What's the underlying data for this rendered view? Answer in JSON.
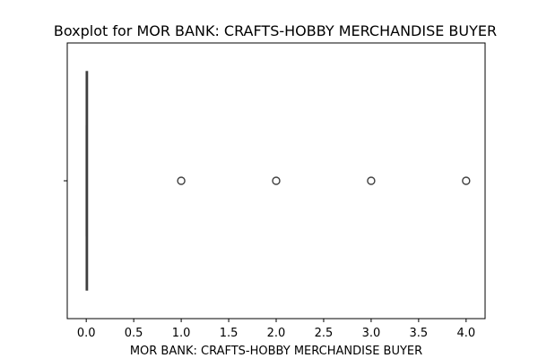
{
  "chart_data": {
    "type": "boxplot",
    "title": "Boxplot for MOR BANK: CRAFTS-HOBBY MERCHANDISE BUYER",
    "xlabel": "MOR BANK: CRAFTS-HOBBY MERCHANDISE BUYER",
    "ylabel": "",
    "xlim": [
      -0.2,
      4.2
    ],
    "xticks": [
      0.0,
      0.5,
      1.0,
      1.5,
      2.0,
      2.5,
      3.0,
      3.5,
      4.0
    ],
    "xtick_labels": [
      "0.0",
      "0.5",
      "1.0",
      "1.5",
      "2.0",
      "2.5",
      "3.0",
      "3.5",
      "4.0"
    ],
    "orientation": "horizontal",
    "grid": false,
    "box": {
      "whisker_low": 0,
      "q1": 0,
      "median": 0,
      "q3": 0,
      "whisker_high": 0
    },
    "outliers": [
      1,
      2,
      3,
      4
    ],
    "colors": {
      "box_edge": "#3f3f3f",
      "outlier_edge": "#3f3f3f",
      "axis": "#000000"
    }
  }
}
